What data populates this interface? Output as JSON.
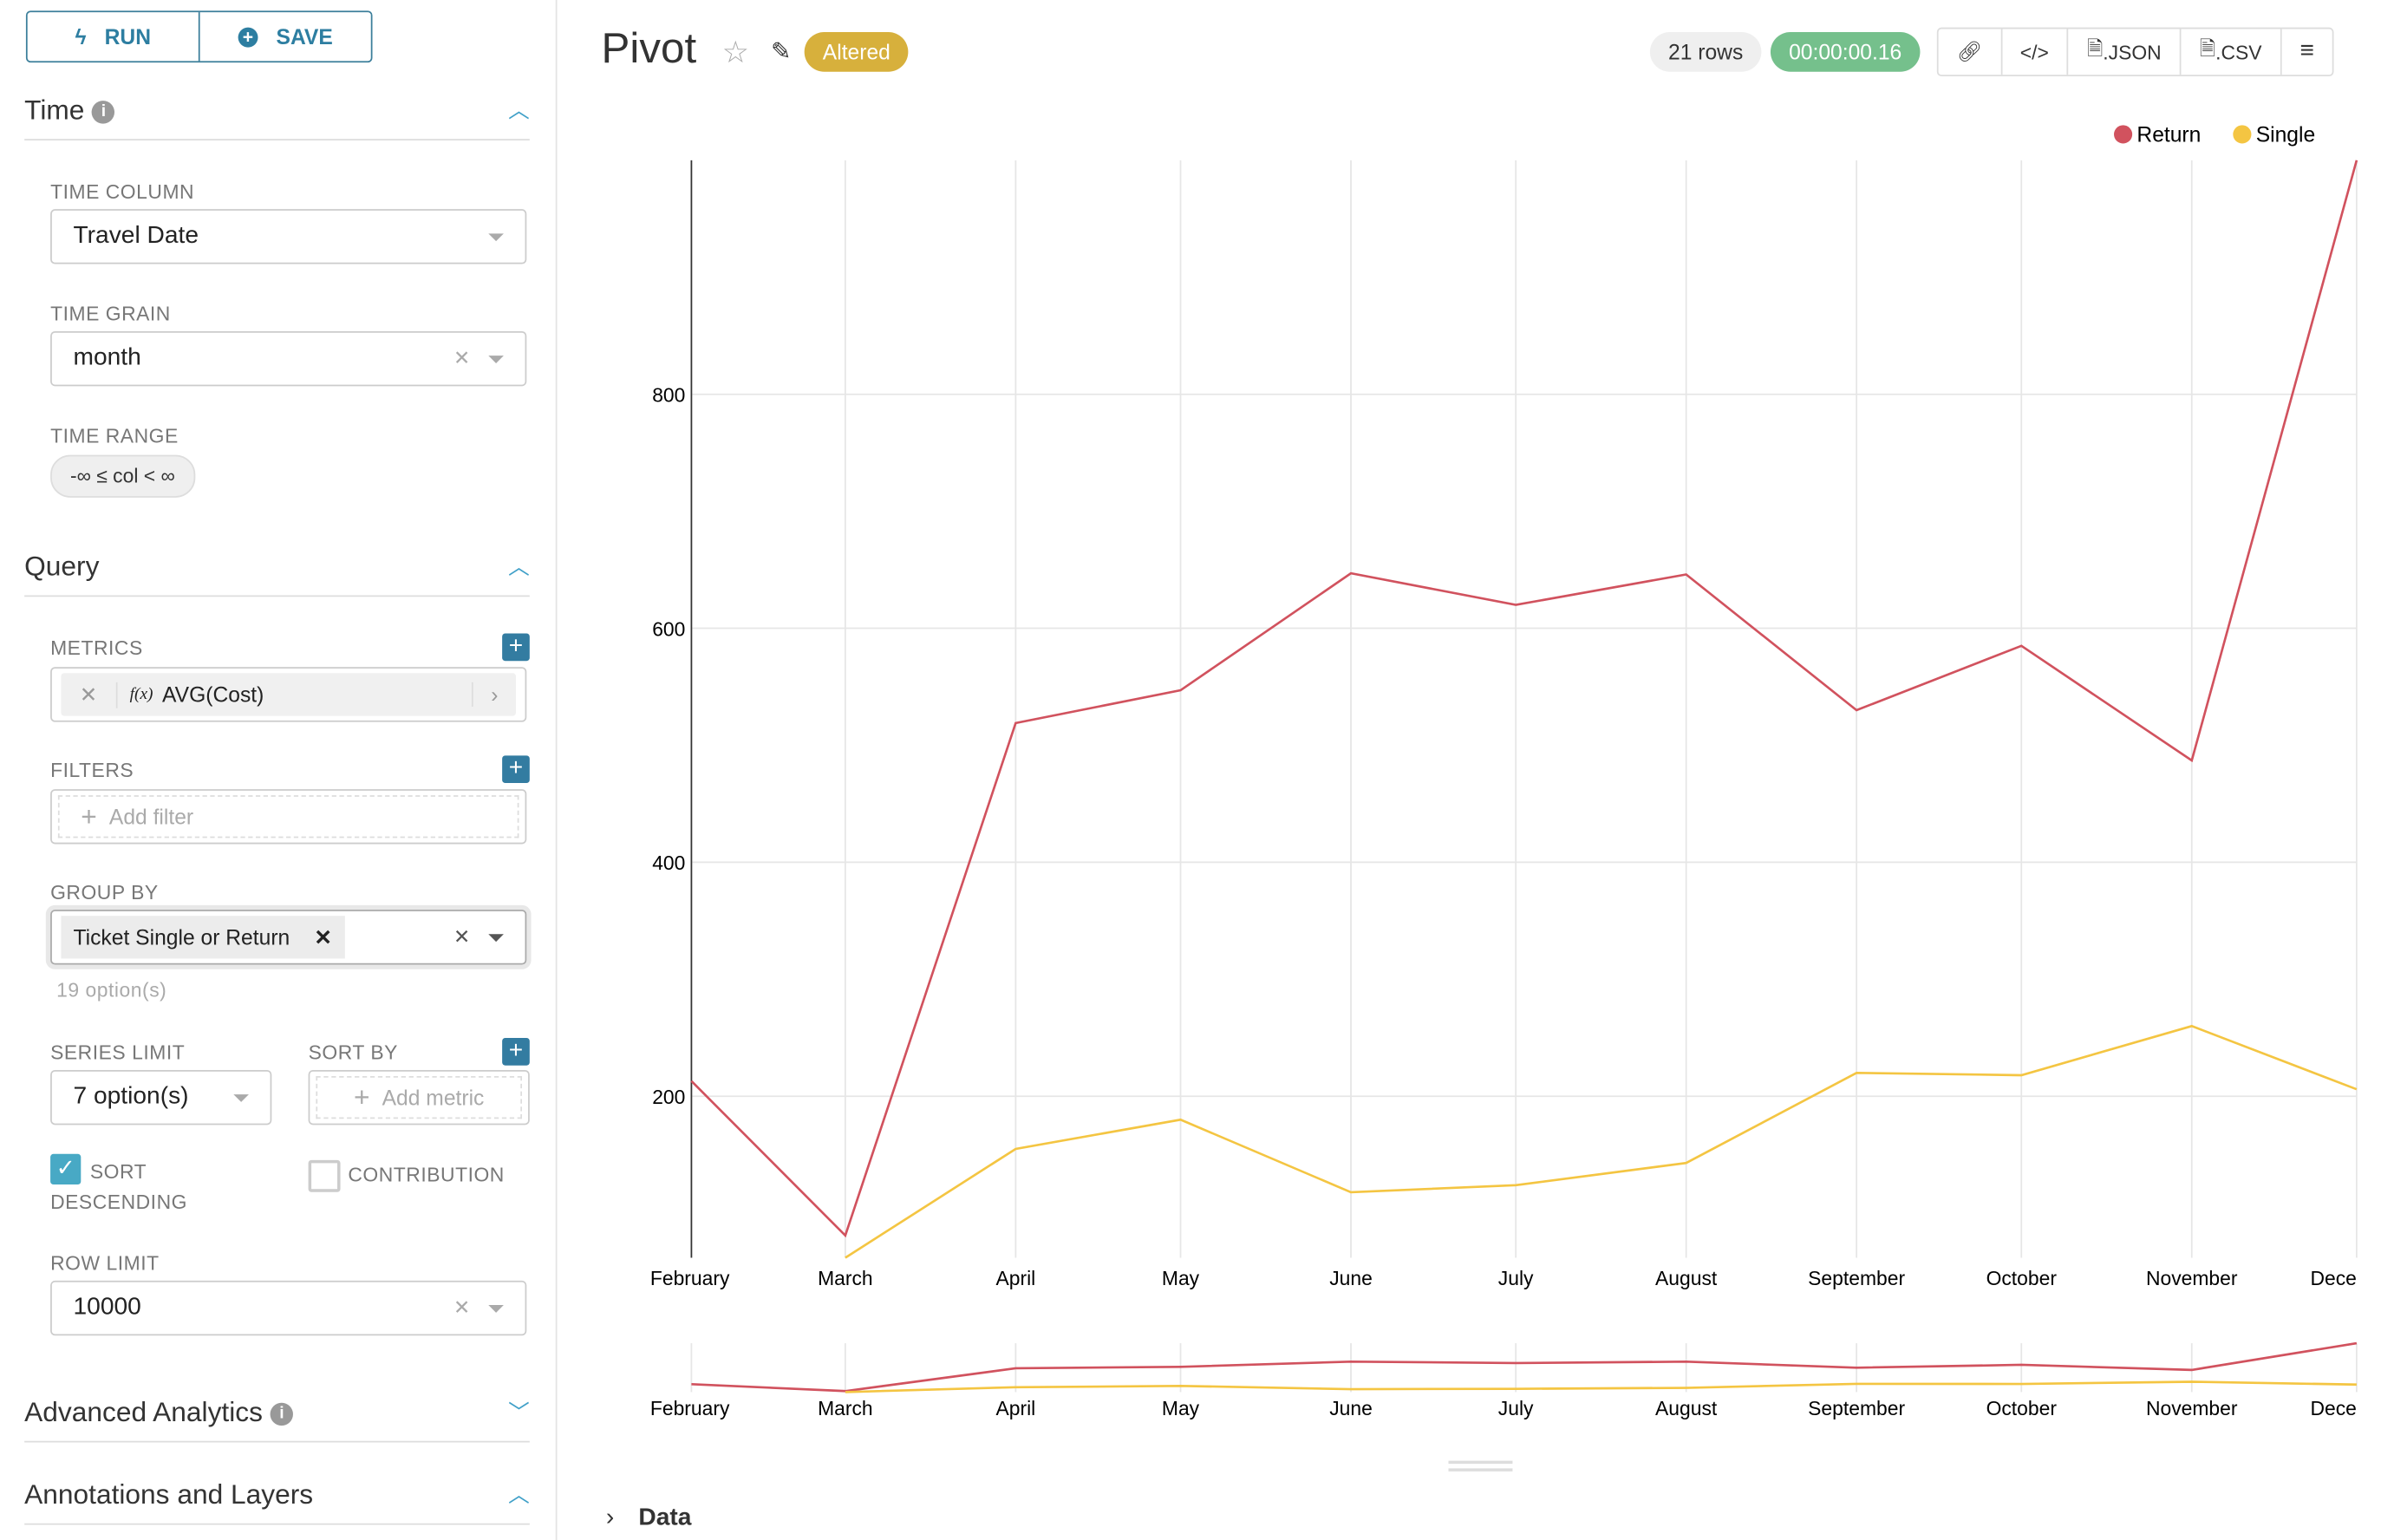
{
  "sidebar": {
    "run_label": "RUN",
    "save_label": "SAVE",
    "time": {
      "title": "Time",
      "time_column_label": "TIME COLUMN",
      "time_column_value": "Travel Date",
      "time_grain_label": "TIME GRAIN",
      "time_grain_value": "month",
      "time_range_label": "TIME RANGE",
      "time_range_value": "-∞ ≤ col < ∞"
    },
    "query": {
      "title": "Query",
      "metrics_label": "METRICS",
      "metric_fx": "f(x)",
      "metric_value": "AVG(Cost)",
      "filters_label": "FILTERS",
      "add_filter": "Add filter",
      "group_by_label": "GROUP BY",
      "group_by_value": "Ticket Single or Return",
      "group_by_hint": "19 option(s)",
      "series_limit_label": "SERIES LIMIT",
      "series_limit_value": "7 option(s)",
      "sort_by_label": "SORT BY",
      "add_metric": "Add metric",
      "sort_desc_label": "SORT DESCENDING",
      "sort_desc_checked": true,
      "contribution_label": "CONTRIBUTION",
      "contribution_checked": false,
      "row_limit_label": "ROW LIMIT",
      "row_limit_value": "10000"
    },
    "advanced_title": "Advanced Analytics",
    "annotations_title": "Annotations and Layers"
  },
  "header": {
    "title": "Pivot",
    "badge": "Altered",
    "rows": "21 rows",
    "duration": "00:00:00.16",
    "json_label": ".JSON",
    "csv_label": ".CSV"
  },
  "colors": {
    "return": "#d1525e",
    "single": "#f4c542",
    "accent": "#337ca1"
  },
  "data_section": "Data",
  "chart_data": {
    "type": "line",
    "categories": [
      "February",
      "March",
      "April",
      "May",
      "June",
      "July",
      "August",
      "September",
      "October",
      "November",
      "December"
    ],
    "tick_labels": [
      "February",
      "March",
      "April",
      "May",
      "June",
      "July",
      "August",
      "September",
      "October",
      "November",
      "Dece"
    ],
    "y_ticks": [
      200,
      400,
      600,
      800
    ],
    "ylim": [
      62,
      1000
    ],
    "grid": true,
    "legend": "top-right",
    "series": [
      {
        "name": "Return",
        "values": [
          213,
          81,
          519,
          547,
          647,
          620,
          646,
          530,
          585,
          487,
          1000
        ]
      },
      {
        "name": "Single",
        "values": [
          null,
          62,
          155,
          180,
          118,
          124,
          143,
          220,
          218,
          260,
          206
        ]
      }
    ]
  }
}
